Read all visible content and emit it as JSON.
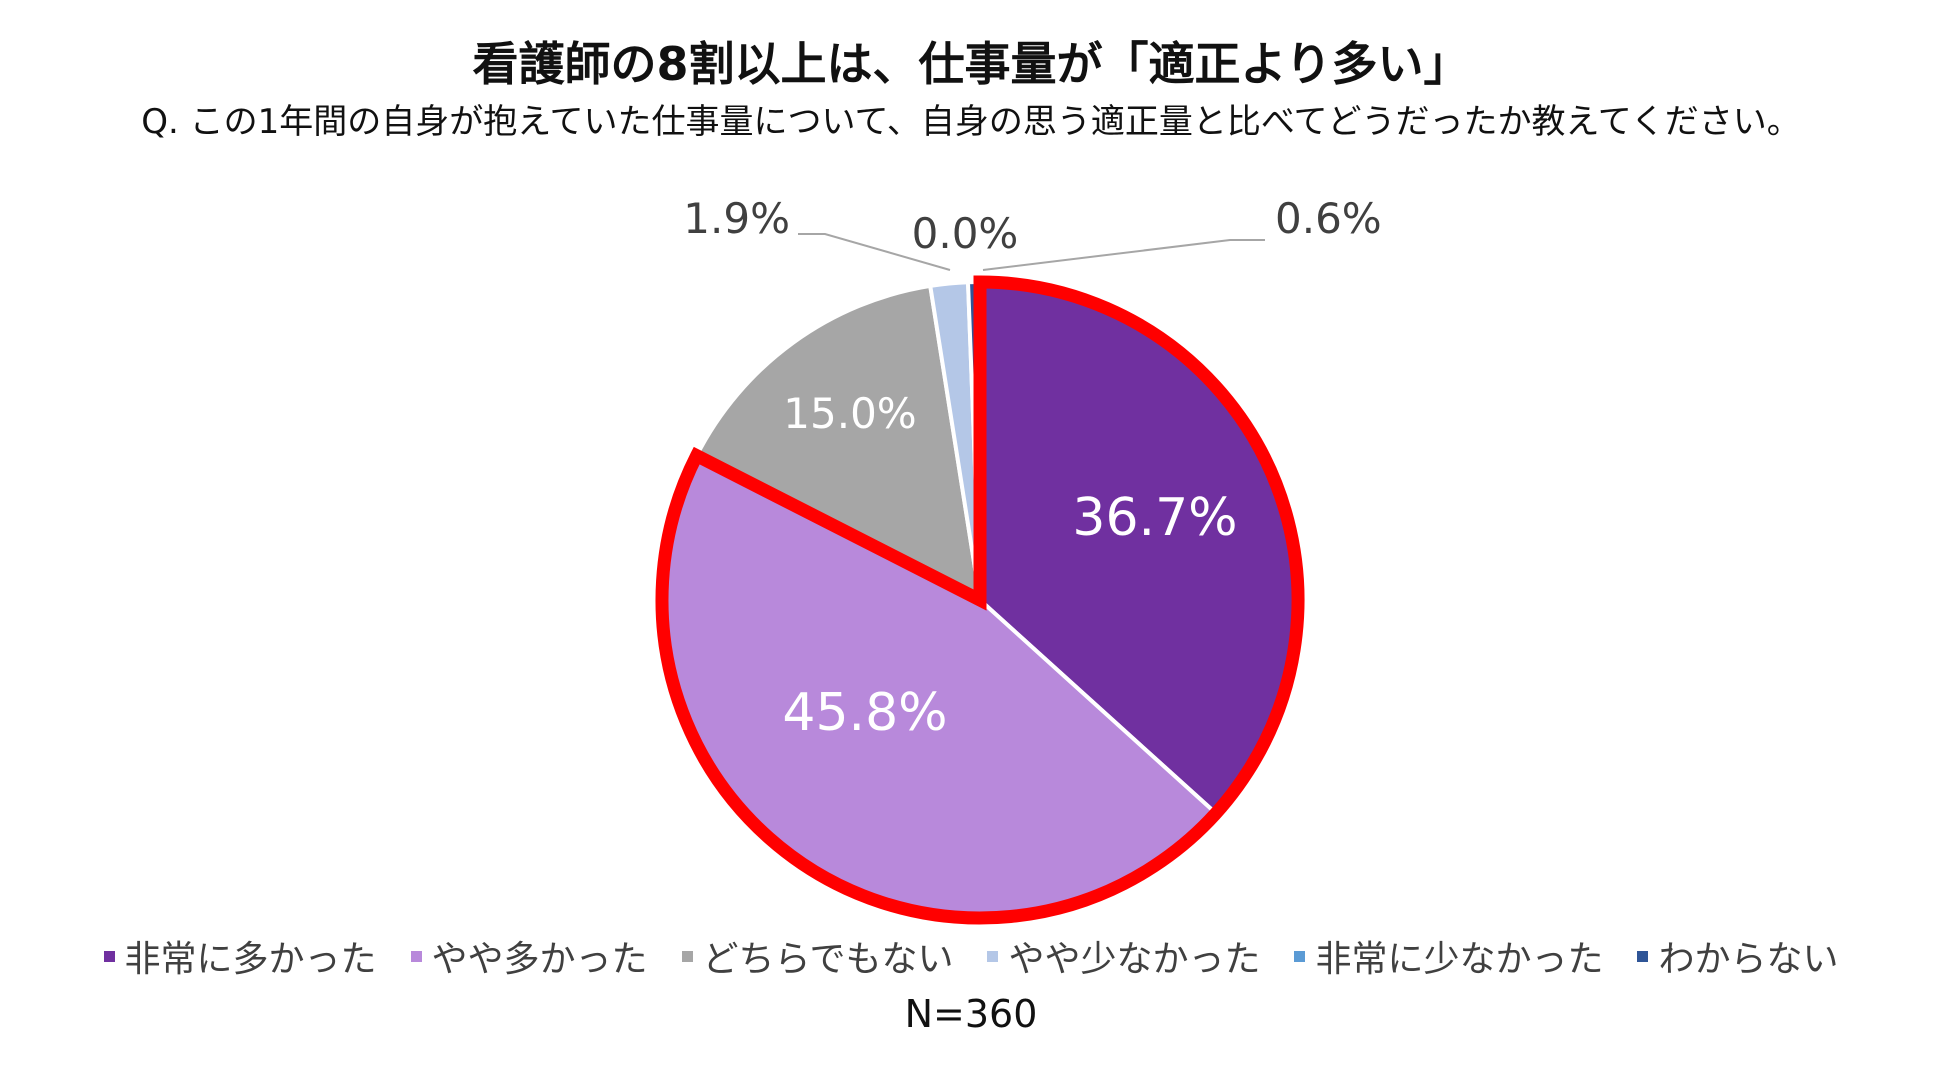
{
  "title": "看護師の8割以上は、仕事量が「適正より多い」",
  "subtitle": "Q. この1年間の自身が抱えていた仕事量について、自身の思う適正量と比べてどうだったか教えてください。",
  "sample_size": "N=360",
  "highlight_color": "#ff0000",
  "chart_data": {
    "type": "pie",
    "start_angle_deg": 0,
    "direction": "clockwise",
    "highlighted_group": [
      "非常に多かった",
      "やや多かった"
    ],
    "slices": [
      {
        "label": "非常に多かった",
        "value": 36.7,
        "value_label": "36.7%",
        "color": "#7030a0",
        "label_color": "#ffffff"
      },
      {
        "label": "やや多かった",
        "value": 45.8,
        "value_label": "45.8%",
        "color": "#b889db",
        "label_color": "#ffffff"
      },
      {
        "label": "どちらでもない",
        "value": 15.0,
        "value_label": "15.0%",
        "color": "#a6a6a6",
        "label_color": "#ffffff"
      },
      {
        "label": "やや少なかった",
        "value": 1.9,
        "value_label": "1.9%",
        "color": "#b4c7e7",
        "label_color": "#404040"
      },
      {
        "label": "非常に少なかった",
        "value": 0.0,
        "value_label": "0.0%",
        "color": "#5b9bd5",
        "label_color": "#404040"
      },
      {
        "label": "わからない",
        "value": 0.6,
        "value_label": "0.6%",
        "color": "#2f5597",
        "label_color": "#404040"
      }
    ]
  }
}
